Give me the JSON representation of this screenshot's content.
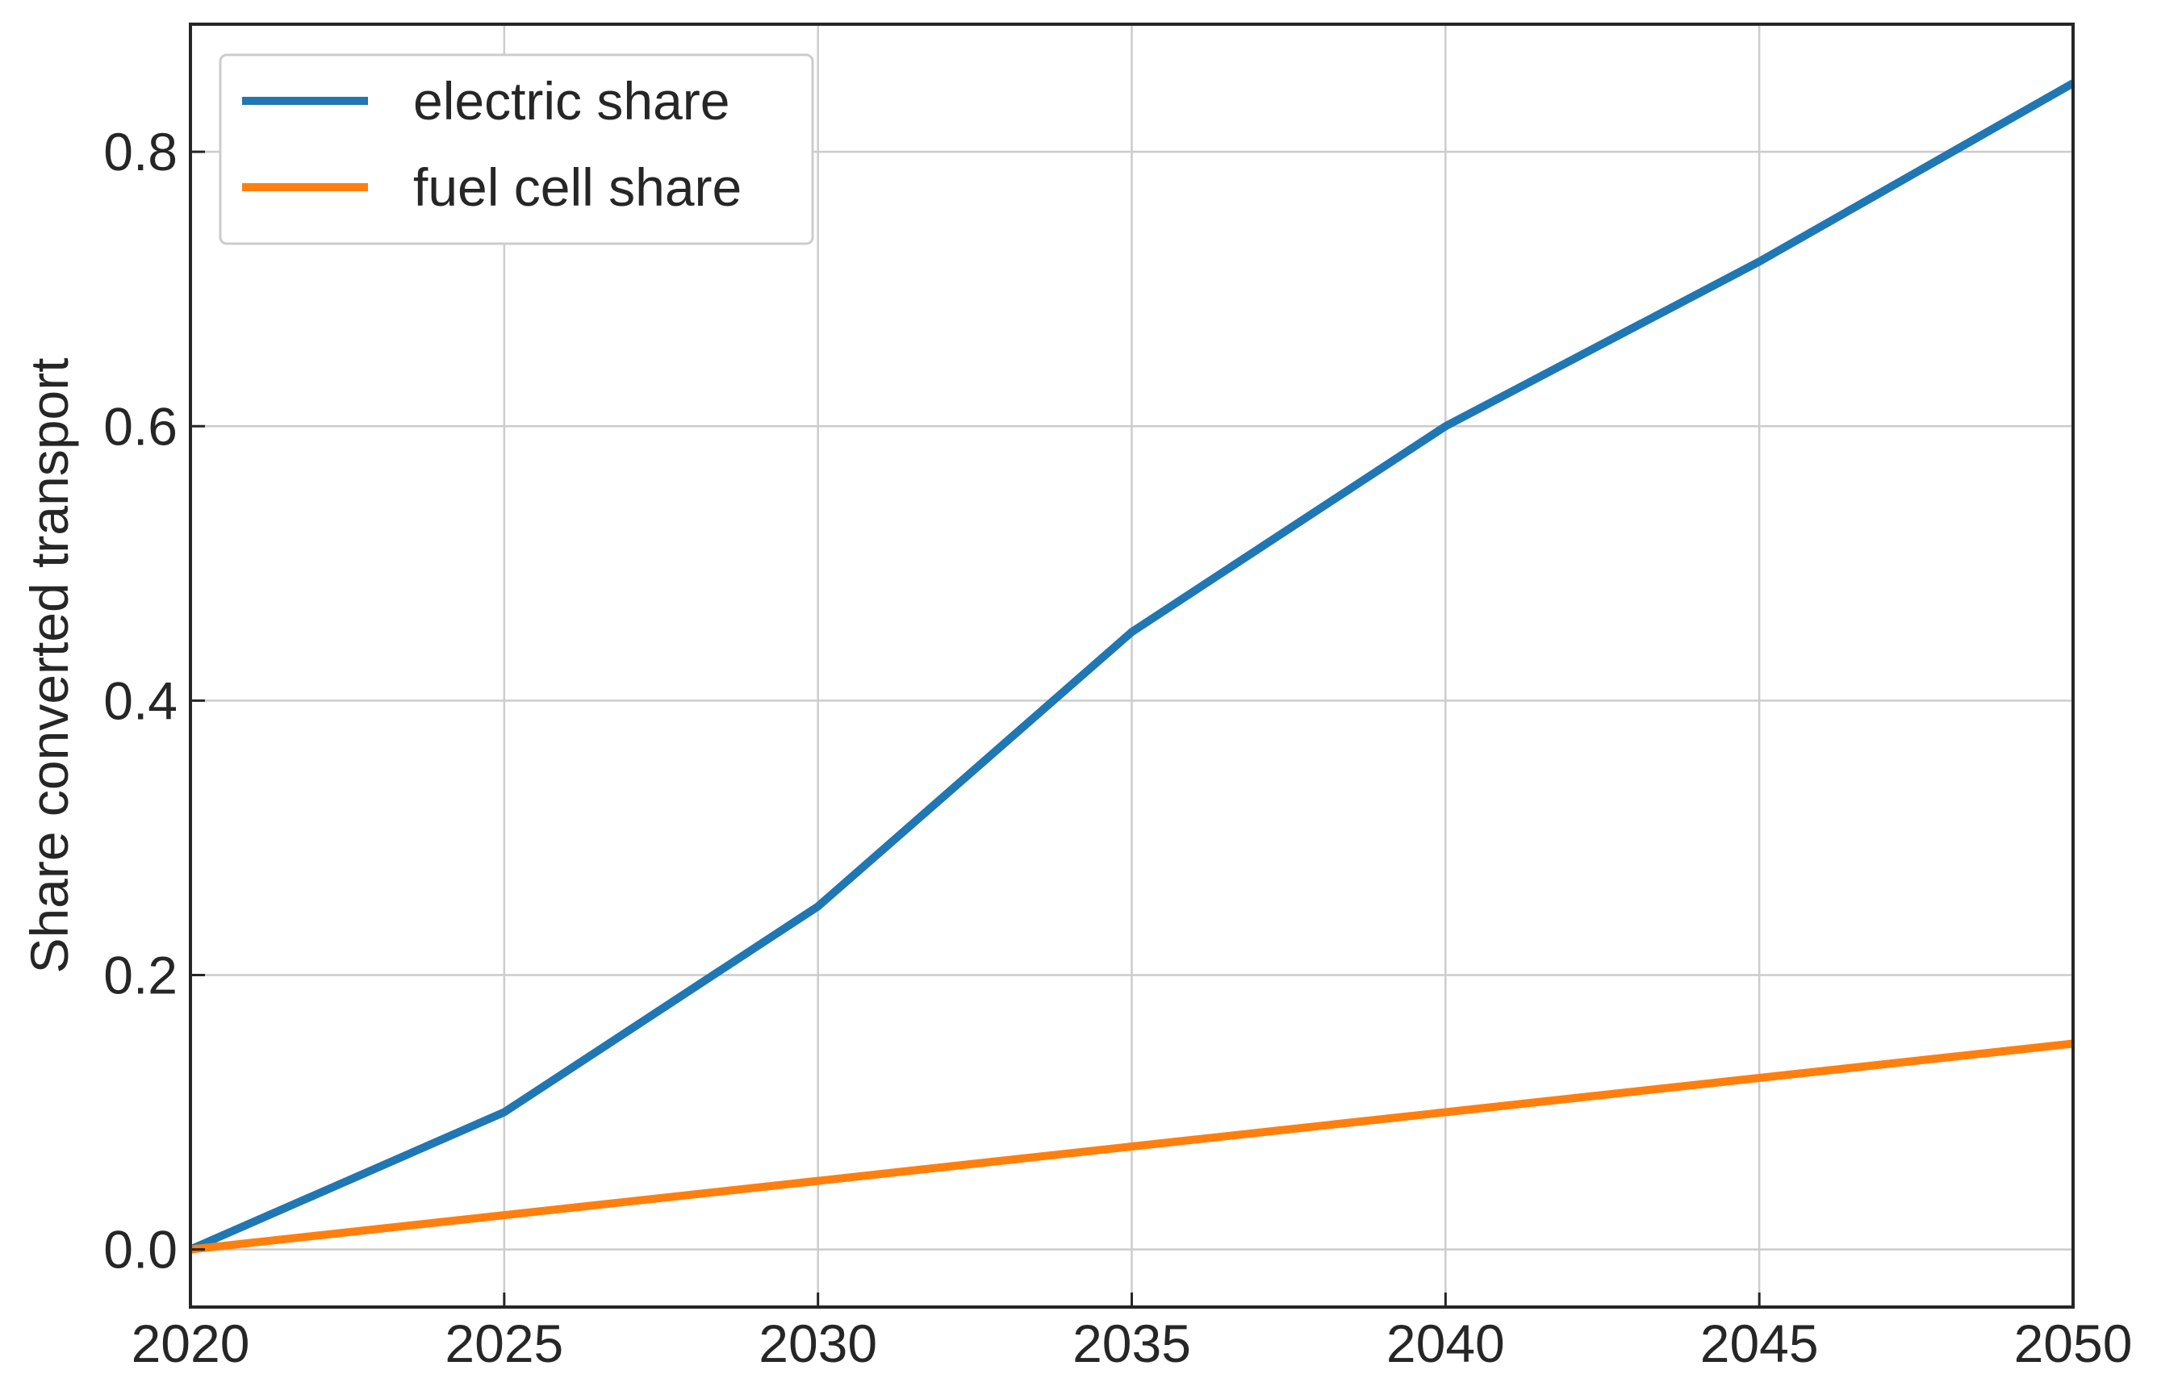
{
  "chart_data": {
    "type": "line",
    "xlabel": "",
    "ylabel": "Share converted transport",
    "x": [
      2020,
      2025,
      2030,
      2035,
      2040,
      2045,
      2050
    ],
    "xlim": [
      2020,
      2050
    ],
    "ylim": [
      -0.042,
      0.893
    ],
    "xticks": [
      2020,
      2025,
      2030,
      2035,
      2040,
      2045,
      2050
    ],
    "xtick_labels": [
      "2020",
      "2025",
      "2030",
      "2035",
      "2040",
      "2045",
      "2050"
    ],
    "yticks": [
      0.0,
      0.2,
      0.4,
      0.6,
      0.8
    ],
    "ytick_labels": [
      "0.0",
      "0.2",
      "0.4",
      "0.6",
      "0.8"
    ],
    "grid": true,
    "legend_position": "top-left",
    "series": [
      {
        "name": "electric share",
        "color": "#1f77b4",
        "values": [
          0.0,
          0.1,
          0.25,
          0.45,
          0.6,
          0.72,
          0.85
        ]
      },
      {
        "name": "fuel cell share",
        "color": "#ff7f0e",
        "values": [
          0.0,
          0.025,
          0.05,
          0.075,
          0.1,
          0.125,
          0.15
        ]
      }
    ]
  }
}
